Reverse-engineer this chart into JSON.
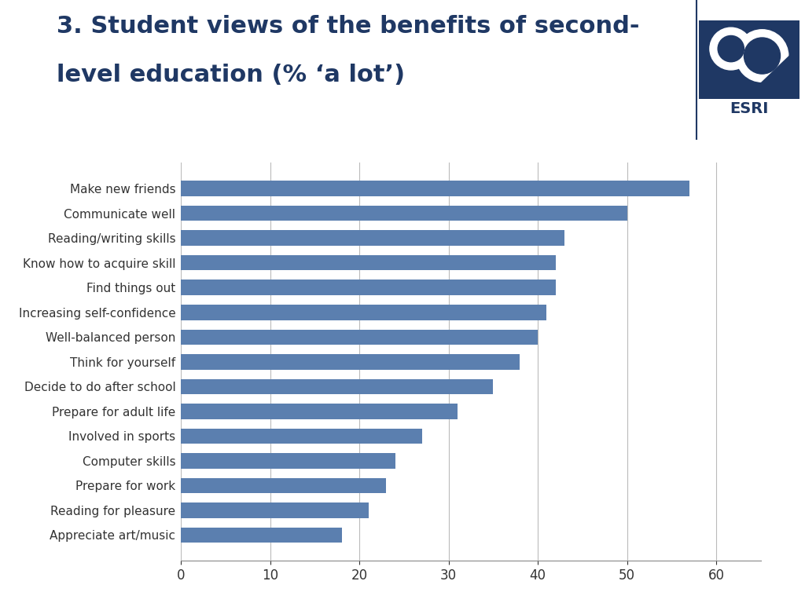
{
  "title_line1": "3. Student views of the benefits of second-",
  "title_line2": "level education (% ‘a lot’)",
  "categories": [
    "Make new friends",
    "Communicate well",
    "Reading/writing skills",
    "Know how to acquire skill",
    "Find things out",
    "Increasing self-confidence",
    "Well-balanced person",
    "Think for yourself",
    "Decide to do after school",
    "Prepare for adult life",
    "Involved in sports",
    "Computer skills",
    "Prepare for work",
    "Reading for pleasure",
    "Appreciate art/music"
  ],
  "values": [
    57,
    50,
    43,
    42,
    42,
    41,
    40,
    38,
    35,
    31,
    27,
    24,
    23,
    21,
    18
  ],
  "bar_color": "#5b7faf",
  "background_color": "#ffffff",
  "title_color": "#1f3864",
  "axis_label_color": "#333333",
  "xlim": [
    0,
    65
  ],
  "xticks": [
    0,
    10,
    20,
    30,
    40,
    50,
    60
  ],
  "title_fontsize": 22,
  "tick_fontsize": 12,
  "label_fontsize": 11,
  "grid_color": "#bbbbbb",
  "logo_bg_color": "#1f3864",
  "logo_text_color": "#1f3864",
  "separator_color": "#1f3864"
}
